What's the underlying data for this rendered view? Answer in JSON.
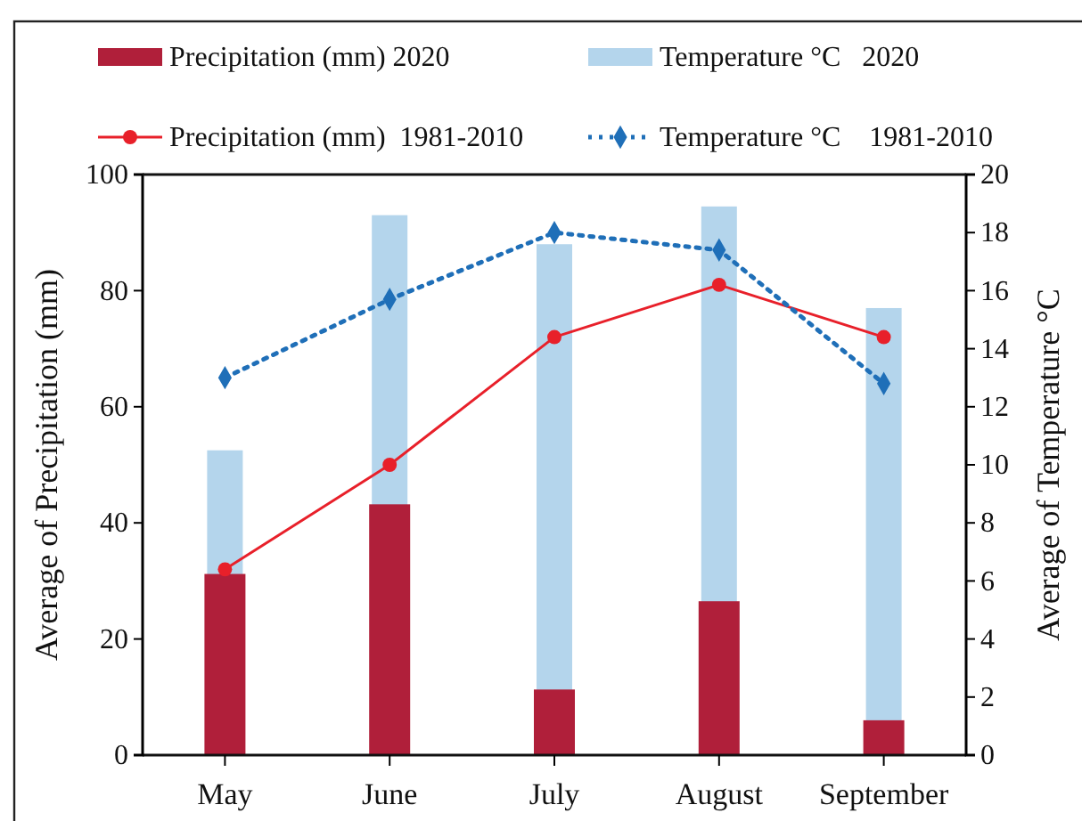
{
  "chart_data": {
    "type": "bar",
    "ylabel": "Average of Precipitation (mm)",
    "y2label": "Average of Temperature °C",
    "categories": [
      "May",
      "June",
      "July",
      "August",
      "September"
    ],
    "series": [
      {
        "name": "Precipitation (mm) 2020",
        "color": "#b01f3a",
        "values": [
          31.2,
          43.2,
          11.3,
          26.5,
          6.0
        ]
      },
      {
        "name": "Temperature °C   2020",
        "axis": "y2",
        "color": "#b4d5ec",
        "values": [
          10.5,
          18.6,
          17.6,
          18.9,
          15.4
        ]
      },
      {
        "name": "Precipitation (mm)  1981-2010",
        "type": "line",
        "color": "#e8202a",
        "marker": "circle",
        "line_style": "solid",
        "values": [
          32,
          50,
          72,
          81,
          72
        ]
      },
      {
        "name": "Temperature °C    1981-2010",
        "type": "line",
        "axis": "y2",
        "color": "#1f6fb8",
        "marker": "diamond",
        "line_style": "dotted",
        "values": [
          13.0,
          15.7,
          18.0,
          17.4,
          12.8
        ]
      }
    ],
    "ylim": [
      0,
      100
    ],
    "yticks": [
      0,
      20,
      40,
      60,
      80,
      100
    ],
    "y2lim": [
      0,
      20
    ],
    "y2ticks": [
      0,
      2,
      4,
      6,
      8,
      10,
      12,
      14,
      16,
      18,
      20
    ],
    "grid": false,
    "legend": "top"
  }
}
